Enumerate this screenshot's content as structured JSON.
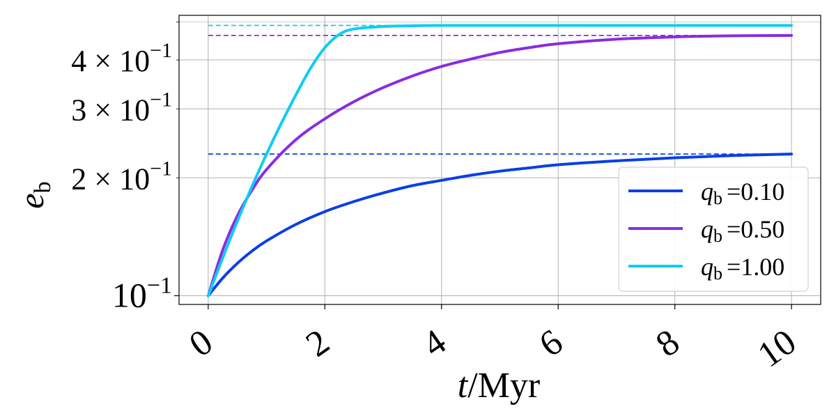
{
  "chart_data": {
    "type": "line",
    "title": "",
    "xlabel": "t/Myr",
    "ylabel": "e_b",
    "xlim": [
      -0.5,
      10.5
    ],
    "ylim": [
      0.095,
      0.52
    ],
    "yscale": "log",
    "grid": true,
    "x_ticks": [
      {
        "value": 0,
        "label": "0"
      },
      {
        "value": 2,
        "label": "2"
      },
      {
        "value": 4,
        "label": "4"
      },
      {
        "value": 6,
        "label": "6"
      },
      {
        "value": 8,
        "label": "8"
      },
      {
        "value": 10,
        "label": "10"
      }
    ],
    "y_ticks": [
      {
        "value": 0.1,
        "label": "10",
        "exp": "−1",
        "coef": ""
      },
      {
        "value": 0.2,
        "label": "10",
        "exp": "−1",
        "coef": "2 × "
      },
      {
        "value": 0.3,
        "label": "10",
        "exp": "−1",
        "coef": "3 × "
      },
      {
        "value": 0.4,
        "label": "10",
        "exp": "−1",
        "coef": "4 × "
      }
    ],
    "legend": {
      "placement": "lower-right"
    },
    "series": [
      {
        "name": "q_b =0.10",
        "color": "#0a3ee8",
        "asymptote": 0.23,
        "x": [
          0,
          0.25,
          0.5,
          0.75,
          1,
          1.5,
          2,
          2.5,
          3,
          3.5,
          4,
          4.5,
          5,
          5.5,
          6,
          7,
          8,
          9,
          10
        ],
        "y": [
          0.1,
          0.111,
          0.121,
          0.13,
          0.138,
          0.152,
          0.164,
          0.174,
          0.183,
          0.191,
          0.197,
          0.203,
          0.208,
          0.212,
          0.216,
          0.221,
          0.225,
          0.228,
          0.23
        ]
      },
      {
        "name": "q_b =0.50",
        "color": "#8a2be2",
        "asymptote": 0.462,
        "x": [
          0,
          0.25,
          0.5,
          0.75,
          1,
          1.5,
          2,
          2.5,
          3,
          3.5,
          4,
          4.5,
          5,
          5.5,
          6,
          7,
          8,
          9,
          10
        ],
        "y": [
          0.1,
          0.131,
          0.16,
          0.186,
          0.21,
          0.25,
          0.283,
          0.313,
          0.34,
          0.364,
          0.385,
          0.402,
          0.418,
          0.43,
          0.44,
          0.452,
          0.458,
          0.461,
          0.462
        ]
      },
      {
        "name": "q_b =1.00",
        "color": "#0dcdf2",
        "asymptote": 0.49,
        "x": [
          0,
          0.25,
          0.5,
          0.75,
          1,
          1.25,
          1.5,
          1.75,
          2,
          2.25,
          2.5,
          3,
          3.5,
          4,
          5,
          6,
          8,
          10
        ],
        "y": [
          0.1,
          0.125,
          0.155,
          0.19,
          0.23,
          0.275,
          0.325,
          0.38,
          0.43,
          0.465,
          0.48,
          0.487,
          0.489,
          0.49,
          0.49,
          0.49,
          0.49,
          0.49
        ]
      }
    ]
  }
}
